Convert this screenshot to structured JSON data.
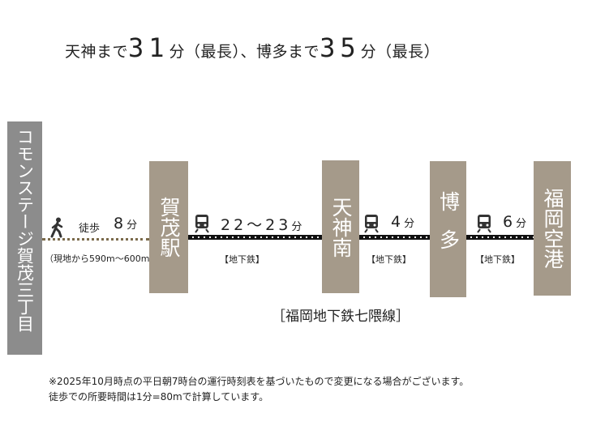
{
  "headline": {
    "p1": "天神まで",
    "n1": "31",
    "p2": "分（最長）、博多まで",
    "n2": "35",
    "p3": "分（最長）"
  },
  "origin": {
    "name": "コモンステージ賀茂三丁目"
  },
  "walk": {
    "label": "徒歩",
    "minutes": "8",
    "unit": "分",
    "distance": "（現地から590m〜600m）"
  },
  "stations": [
    {
      "name": "賀茂駅"
    },
    {
      "name": "天神南"
    },
    {
      "name": "博多"
    },
    {
      "name": "福岡空港"
    }
  ],
  "segments": [
    {
      "time": "22〜23",
      "unit": "分",
      "tag": "【地下鉄】"
    },
    {
      "time": "4",
      "unit": "分",
      "tag": "【地下鉄】"
    },
    {
      "time": "6",
      "unit": "分",
      "tag": "【地下鉄】"
    }
  ],
  "line_name": "［福岡地下鉄七隈線］",
  "notes": [
    "※2025年10月時点の平日朝7時台の運行時刻表を基づいたもので変更になる場合がございます。",
    "徒歩での所要時間は1分=80mで計算しています。"
  ],
  "colors": {
    "station_box": "#a59a8a",
    "origin_box": "#8c8c8c",
    "walk_line": "#7a6a4a",
    "rail": "#111111",
    "train_icon": "#333333"
  },
  "icons": {
    "walker": "walker-icon",
    "train": "train-icon"
  }
}
